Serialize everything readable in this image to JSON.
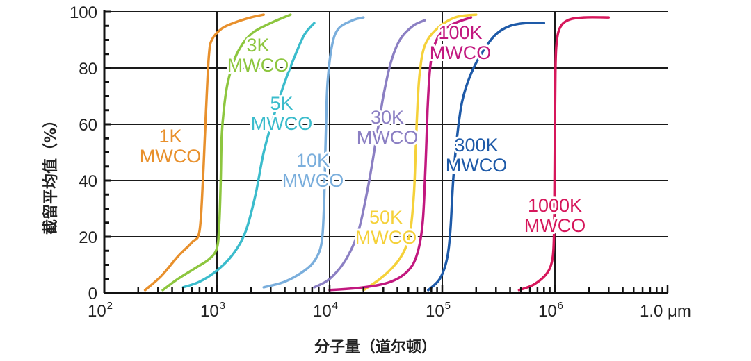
{
  "chart_data": {
    "type": "line",
    "xscale": "log",
    "xlim": [
      100,
      10000000
    ],
    "ylim": [
      0,
      100
    ],
    "xlabel": "分子量（道尔顿）",
    "ylabel": "截留平均值（%）",
    "x_tick_labels": [
      {
        "x": 100,
        "base": "10",
        "exp": "2"
      },
      {
        "x": 1000,
        "base": "10",
        "exp": "3"
      },
      {
        "x": 10000,
        "base": "10",
        "exp": "4"
      },
      {
        "x": 100000,
        "base": "10",
        "exp": "5"
      },
      {
        "x": 1000000,
        "base": "10",
        "exp": "6"
      },
      {
        "x": 10000000,
        "base": "1.0 μm",
        "exp": ""
      }
    ],
    "y_ticks": [
      0,
      20,
      40,
      60,
      80,
      100
    ],
    "grid": true,
    "series": [
      {
        "name": "1K MWCO",
        "color": "#e8902c",
        "label_lines": [
          "1K",
          "MWCO"
        ],
        "x": [
          230,
          320,
          450,
          600,
          700,
          750,
          780,
          790,
          800,
          815,
          850,
          900,
          1100,
          1400,
          2000,
          2600
        ],
        "y": [
          1,
          6,
          13,
          18,
          22,
          40,
          55,
          60,
          65,
          72,
          85,
          90,
          94,
          96,
          98,
          99
        ]
      },
      {
        "name": "3K MWCO",
        "color": "#8dc63f",
        "label_lines": [
          "3K",
          "MWCO"
        ],
        "x": [
          330,
          450,
          650,
          850,
          1000,
          1050,
          1080,
          1100,
          1150,
          1250,
          1500,
          2000,
          3000,
          4500
        ],
        "y": [
          1,
          5,
          9,
          12,
          16,
          25,
          40,
          55,
          65,
          75,
          85,
          92,
          96,
          99
        ]
      },
      {
        "name": "5K MWCO",
        "color": "#3bbccc",
        "label_lines": [
          "5K",
          "MWCO"
        ],
        "x": [
          500,
          700,
          1000,
          1400,
          1800,
          2200,
          2600,
          3200,
          4000,
          5000,
          6000,
          7300
        ],
        "y": [
          2,
          4,
          8,
          14,
          22,
          35,
          50,
          63,
          75,
          85,
          92,
          96
        ]
      },
      {
        "name": "10K MWCO",
        "color": "#7aaedc",
        "label_lines": [
          "10K",
          "MWCO"
        ],
        "x": [
          2600,
          4000,
          6000,
          7500,
          8500,
          8900,
          9100,
          9300,
          9600,
          10500,
          12000,
          16000,
          20000
        ],
        "y": [
          2,
          4,
          8,
          12,
          18,
          30,
          45,
          60,
          75,
          88,
          94,
          97,
          98
        ]
      },
      {
        "name": "30K MWCO",
        "color": "#8b7fc3",
        "label_lines": [
          "30K",
          "MWCO"
        ],
        "x": [
          7300,
          10000,
          14000,
          18000,
          22000,
          26000,
          30000,
          35000,
          42000,
          55000,
          70000
        ],
        "y": [
          2,
          5,
          12,
          22,
          38,
          55,
          70,
          82,
          90,
          95,
          97
        ]
      },
      {
        "name": "50K MWCO",
        "color": "#f5d13a",
        "label_lines": [
          "50K",
          "MWCO"
        ],
        "x": [
          20000,
          28000,
          38000,
          46000,
          52000,
          56000,
          58000,
          60000,
          63000,
          70000,
          90000,
          130000,
          200000
        ],
        "y": [
          1,
          5,
          10,
          15,
          22,
          35,
          50,
          65,
          78,
          88,
          94,
          98,
          99
        ]
      },
      {
        "name": "100K MWCO",
        "color": "#c2187f",
        "label_lines": [
          "100K",
          "MWCO"
        ],
        "x": [
          10000,
          20000,
          35000,
          50000,
          60000,
          67000,
          71000,
          74000,
          78000,
          85000,
          100000,
          130000,
          180000
        ],
        "y": [
          1,
          2,
          4,
          8,
          14,
          25,
          45,
          65,
          80,
          88,
          93,
          96,
          98
        ]
      },
      {
        "name": "300K MWCO",
        "color": "#1e5aa8",
        "label_lines": [
          "300K",
          "MWCO"
        ],
        "x": [
          75000,
          95000,
          110000,
          118000,
          125000,
          135000,
          150000,
          180000,
          230000,
          300000,
          400000,
          550000,
          800000
        ],
        "y": [
          1,
          5,
          12,
          22,
          40,
          55,
          68,
          78,
          86,
          92,
          95,
          96,
          96
        ]
      },
      {
        "name": "1000K MWCO",
        "color": "#d6175b",
        "label_lines": [
          "1000K",
          "MWCO"
        ],
        "x": [
          480000,
          650000,
          850000,
          950000,
          980000,
          990000,
          1000000,
          1010000,
          1030000,
          1100000,
          1300000,
          1800000,
          3000000
        ],
        "y": [
          1,
          3,
          7,
          12,
          20,
          35,
          60,
          78,
          88,
          94,
          97,
          98,
          98
        ]
      }
    ]
  },
  "labels": {
    "series_0_line0": "1K",
    "series_0_line1": "MWCO",
    "series_1_line0": "3K",
    "series_1_line1": "MWCO",
    "series_2_line0": "5K",
    "series_2_line1": "MWCO",
    "series_3_line0": "10K",
    "series_3_line1": "MWCO",
    "series_4_line0": "30K",
    "series_4_line1": "MWCO",
    "series_5_line0": "50K",
    "series_5_line1": "MWCO",
    "series_6_line0": "100K",
    "series_6_line1": "MWCO",
    "series_7_line0": "300K",
    "series_7_line1": "MWCO",
    "series_8_line0": "1000K",
    "series_8_line1": "MWCO"
  }
}
